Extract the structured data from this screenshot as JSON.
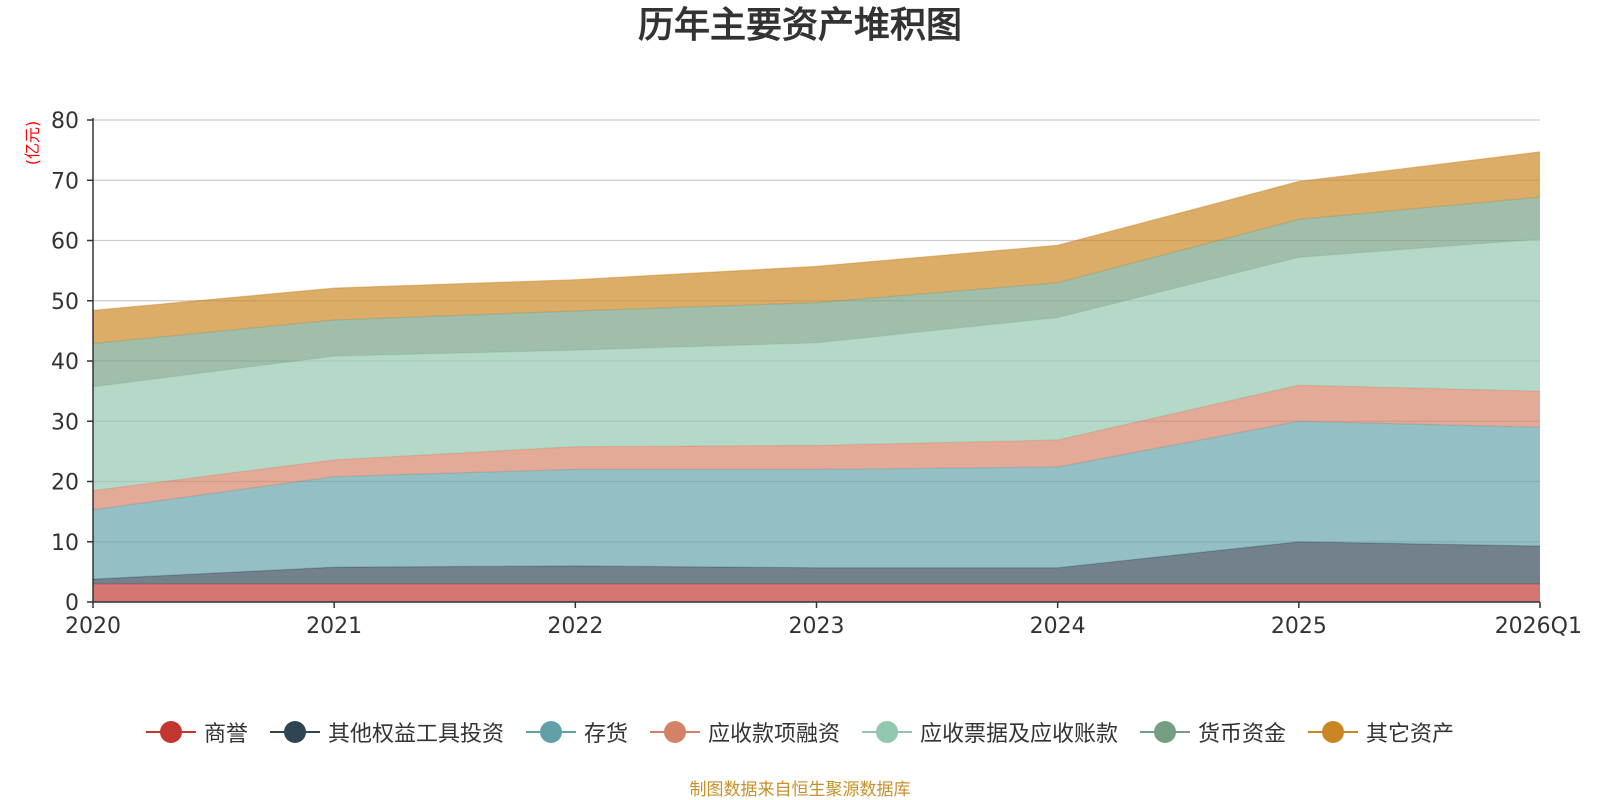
{
  "chart_data": {
    "type": "area",
    "stacked": true,
    "title": "历年主要资产堆积图",
    "ylabel": "(亿元)",
    "categories": [
      "2020",
      "2021",
      "2022",
      "2023",
      "2024",
      "2025",
      "2026Q1"
    ],
    "ylim": [
      0,
      80
    ],
    "yticks": [
      0,
      10,
      20,
      30,
      40,
      50,
      60,
      70,
      80
    ],
    "grid": true,
    "legend_position": "bottom",
    "series": [
      {
        "name": "商誉",
        "color": "#c23531",
        "values": [
          3.0,
          3.0,
          3.0,
          3.0,
          3.0,
          3.0,
          3.0
        ]
      },
      {
        "name": "其他权益工具投资",
        "color": "#2f4554",
        "values": [
          0.8,
          2.8,
          3.0,
          2.7,
          2.7,
          7.0,
          6.3
        ]
      },
      {
        "name": "存货",
        "color": "#61a0a8",
        "values": [
          11.5,
          15.0,
          16.0,
          16.3,
          16.7,
          20.0,
          19.7
        ]
      },
      {
        "name": "应收款项融资",
        "color": "#d48265",
        "values": [
          3.2,
          2.8,
          3.8,
          4.0,
          4.5,
          6.0,
          6.0
        ]
      },
      {
        "name": "应收票据及应收账款",
        "color": "#91c7ae",
        "values": [
          17.2,
          17.2,
          16.0,
          17.0,
          20.3,
          21.2,
          25.2
        ]
      },
      {
        "name": "货币资金",
        "color": "#749f83",
        "values": [
          7.2,
          6.0,
          6.5,
          6.7,
          5.8,
          6.3,
          7.0
        ]
      },
      {
        "name": "其它资产",
        "color": "#ca8622",
        "values": [
          5.5,
          5.3,
          5.2,
          6.0,
          6.2,
          6.3,
          7.5
        ]
      }
    ],
    "source_note": "制图数据来自恒生聚源数据库"
  }
}
